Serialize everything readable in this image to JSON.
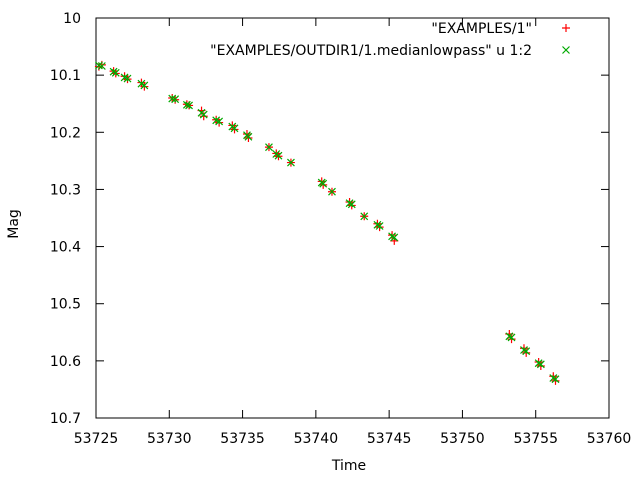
{
  "chart_data": {
    "type": "scatter",
    "title": "",
    "xlabel": "Time",
    "ylabel": "Mag",
    "xlim": [
      53725,
      53760
    ],
    "ylim": [
      10.7,
      10
    ],
    "y_inverted": true,
    "grid": false,
    "legend_position": "top-right",
    "xticks": [
      53725,
      53730,
      53735,
      53740,
      53745,
      53750,
      53755,
      53760
    ],
    "xtick_labels": [
      "53725",
      "53730",
      "53735",
      "53740",
      "53745",
      "53750",
      "53755",
      "53760"
    ],
    "yticks": [
      10,
      10.1,
      10.2,
      10.3,
      10.4,
      10.5,
      10.6,
      10.7
    ],
    "ytick_labels": [
      "10",
      "10.1",
      "10.2",
      "10.3",
      "10.4",
      "10.5",
      "10.6",
      "10.7"
    ],
    "series": [
      {
        "name": "\"EXAMPLES/1\"",
        "marker": "plus",
        "color": "#ff0000",
        "points": [
          [
            53725.2,
            10.085
          ],
          [
            53725.4,
            10.082
          ],
          [
            53726.2,
            10.093
          ],
          [
            53726.35,
            10.097
          ],
          [
            53726.95,
            10.102
          ],
          [
            53727.15,
            10.107
          ],
          [
            53728.1,
            10.113
          ],
          [
            53728.3,
            10.12
          ],
          [
            53730.2,
            10.14
          ],
          [
            53730.4,
            10.143
          ],
          [
            53731.2,
            10.151
          ],
          [
            53731.35,
            10.153
          ],
          [
            53732.2,
            10.162
          ],
          [
            53732.35,
            10.172
          ],
          [
            53733.2,
            10.178
          ],
          [
            53733.4,
            10.183
          ],
          [
            53734.3,
            10.188
          ],
          [
            53734.45,
            10.195
          ],
          [
            53735.3,
            10.203
          ],
          [
            53735.4,
            10.21
          ],
          [
            53736.8,
            10.226
          ],
          [
            53737.3,
            10.237
          ],
          [
            53737.45,
            10.242
          ],
          [
            53738.3,
            10.253
          ],
          [
            53740.4,
            10.286
          ],
          [
            53740.5,
            10.292
          ],
          [
            53741.1,
            10.304
          ],
          [
            53742.3,
            10.322
          ],
          [
            53742.45,
            10.328
          ],
          [
            53743.3,
            10.347
          ],
          [
            53744.2,
            10.36
          ],
          [
            53744.35,
            10.366
          ],
          [
            53745.2,
            10.38
          ],
          [
            53745.35,
            10.39
          ],
          [
            53753.2,
            10.553
          ],
          [
            53753.35,
            10.562
          ],
          [
            53754.2,
            10.578
          ],
          [
            53754.35,
            10.586
          ],
          [
            53755.2,
            10.602
          ],
          [
            53755.35,
            10.609
          ],
          [
            53756.2,
            10.627
          ],
          [
            53756.35,
            10.635
          ]
        ]
      },
      {
        "name": "\"EXAMPLES/OUTDIR1/1.medianlowpass\" u 1:2",
        "marker": "x",
        "color": "#00aa00",
        "points": [
          [
            53725.2,
            10.083
          ],
          [
            53725.4,
            10.084
          ],
          [
            53726.2,
            10.094
          ],
          [
            53726.35,
            10.096
          ],
          [
            53726.95,
            10.104
          ],
          [
            53727.15,
            10.106
          ],
          [
            53728.1,
            10.115
          ],
          [
            53728.3,
            10.118
          ],
          [
            53730.2,
            10.141
          ],
          [
            53730.4,
            10.142
          ],
          [
            53731.2,
            10.152
          ],
          [
            53731.35,
            10.153
          ],
          [
            53732.2,
            10.166
          ],
          [
            53732.35,
            10.169
          ],
          [
            53733.2,
            10.179
          ],
          [
            53733.4,
            10.181
          ],
          [
            53734.3,
            10.19
          ],
          [
            53734.45,
            10.193
          ],
          [
            53735.3,
            10.205
          ],
          [
            53735.4,
            10.208
          ],
          [
            53736.8,
            10.226
          ],
          [
            53737.3,
            10.238
          ],
          [
            53737.45,
            10.241
          ],
          [
            53738.3,
            10.253
          ],
          [
            53740.4,
            10.288
          ],
          [
            53740.5,
            10.29
          ],
          [
            53741.1,
            10.304
          ],
          [
            53742.3,
            10.324
          ],
          [
            53742.45,
            10.326
          ],
          [
            53743.3,
            10.347
          ],
          [
            53744.2,
            10.362
          ],
          [
            53744.35,
            10.364
          ],
          [
            53745.2,
            10.382
          ],
          [
            53745.35,
            10.384
          ],
          [
            53753.2,
            10.557
          ],
          [
            53753.35,
            10.559
          ],
          [
            53754.2,
            10.581
          ],
          [
            53754.35,
            10.583
          ],
          [
            53755.2,
            10.604
          ],
          [
            53755.35,
            10.606
          ],
          [
            53756.2,
            10.63
          ],
          [
            53756.35,
            10.632
          ]
        ]
      }
    ]
  }
}
